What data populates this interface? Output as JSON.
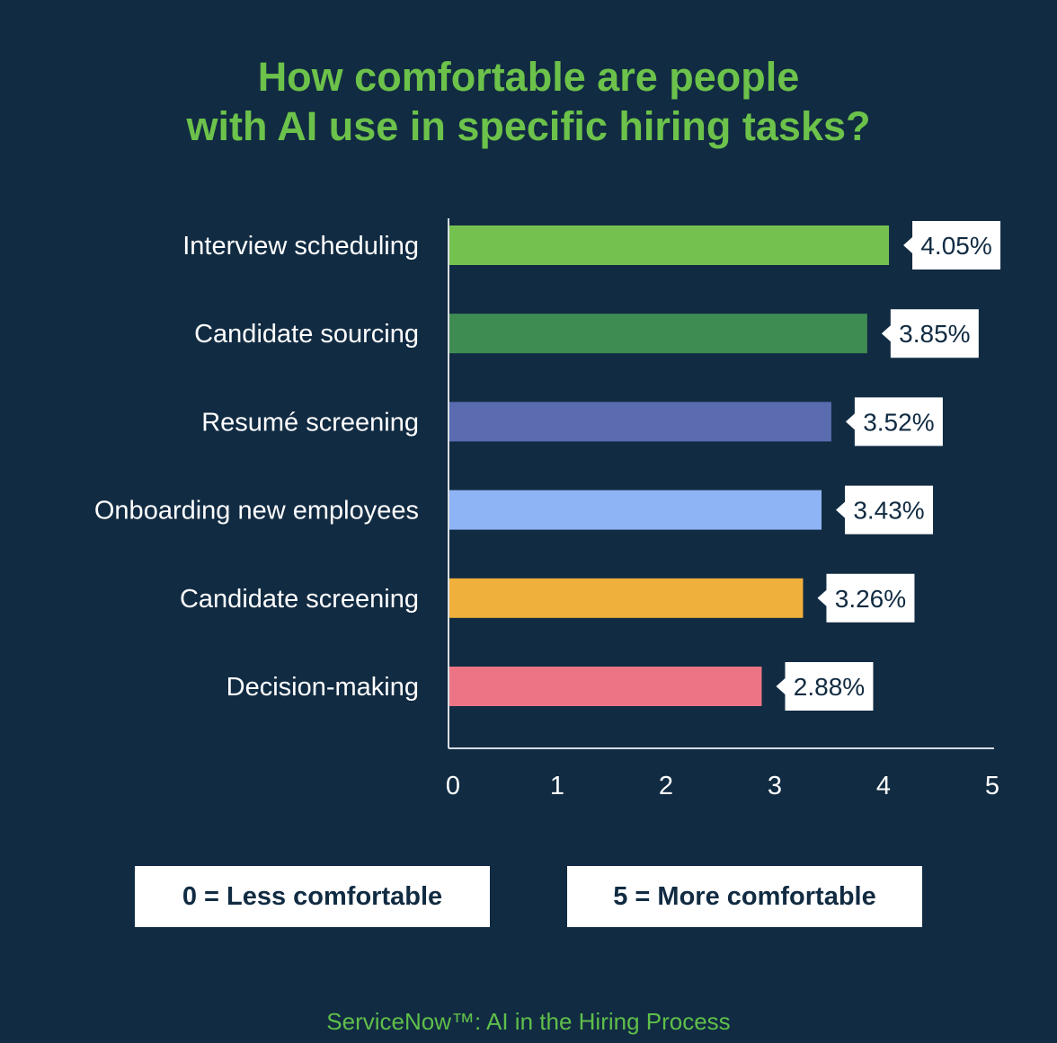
{
  "chart_data": {
    "type": "bar",
    "orientation": "horizontal",
    "title": "How comfortable are people with AI use in specific hiring tasks?",
    "title_lines": [
      "How comfortable are people",
      "with AI use in specific hiring tasks?"
    ],
    "categories": [
      "Interview scheduling",
      "Candidate sourcing",
      "Resumé screening",
      "Onboarding new employees",
      "Candidate screening",
      "Decision-making"
    ],
    "values": [
      4.05,
      3.85,
      3.52,
      3.43,
      3.26,
      2.88
    ],
    "data_labels": [
      "4.05%",
      "3.85%",
      "3.52%",
      "3.43%",
      "3.26%",
      "2.88%"
    ],
    "colors": [
      "#75c150",
      "#3f8c53",
      "#5b6bb0",
      "#8fb4f5",
      "#efb03c",
      "#ec7585"
    ],
    "xlim": [
      0,
      5
    ],
    "xticks": [
      "0",
      "1",
      "2",
      "3",
      "4",
      "5"
    ],
    "xlabel": "",
    "ylabel": "",
    "grid": false
  },
  "legend": {
    "low": "0 = Less comfortable",
    "high": "5 = More comfortable"
  },
  "source": "ServiceNow™: AI in the Hiring Process"
}
